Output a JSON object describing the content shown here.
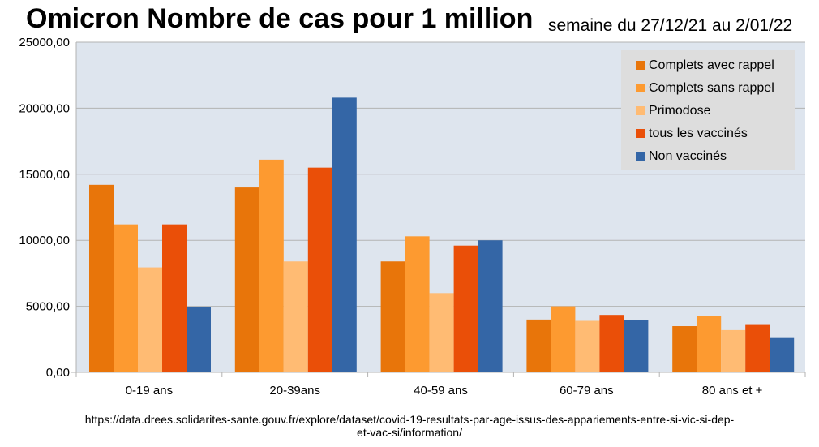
{
  "chart_data": {
    "type": "bar",
    "title": "Omicron Nombre de cas pour 1 million",
    "subtitle": "semaine du 27/12/21 au 2/01/22",
    "categories": [
      "0-19 ans",
      "20-39ans",
      "40-59 ans",
      "60-79 ans",
      "80 ans et +"
    ],
    "series": [
      {
        "name": "Complets avec rappel",
        "color": "#e8750a",
        "values": [
          14200,
          14000,
          8400,
          4000,
          3500
        ]
      },
      {
        "name": "Complets sans rappel",
        "color": "#fd9a30",
        "values": [
          11200,
          16100,
          10300,
          5000,
          4250
        ]
      },
      {
        "name": "Primodose",
        "color": "#ffbb73",
        "values": [
          7950,
          8400,
          6000,
          3900,
          3200
        ]
      },
      {
        "name": "tous les vaccinés",
        "color": "#ea4f08",
        "values": [
          11200,
          15500,
          9600,
          4350,
          3650
        ]
      },
      {
        "name": "Non vaccinés",
        "color": "#3466a6",
        "values": [
          4950,
          20800,
          10000,
          3950,
          2600
        ]
      }
    ],
    "ylim": [
      0,
      25000
    ],
    "yticks": [
      "0,00",
      "5000,00",
      "10000,00",
      "15000,00",
      "20000,00",
      "25000,00"
    ],
    "ytick_values": [
      0,
      5000,
      10000,
      15000,
      20000,
      25000
    ],
    "grid": true,
    "legend": "top-right",
    "background": "#dee5ee",
    "xlabel": "",
    "ylabel": ""
  },
  "source": {
    "line1": "https://data.drees.solidarites-sante.gouv.fr/explore/dataset/covid-19-resultats-par-age-issus-des-appariements-entre-si-vic-si-dep-",
    "line2": "et-vac-si/information/"
  }
}
